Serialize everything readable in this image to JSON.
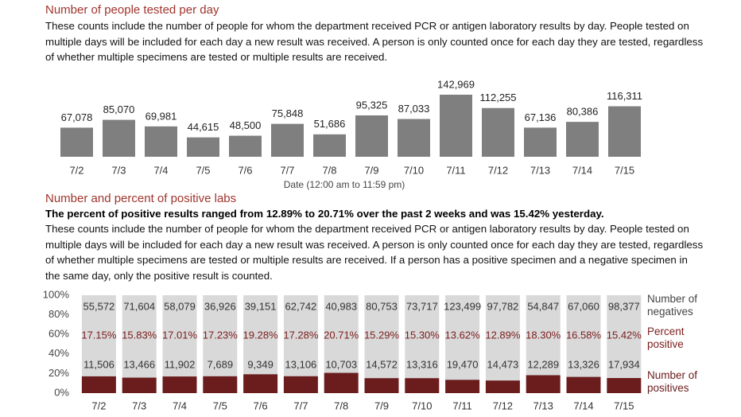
{
  "chart_data": [
    {
      "type": "bar",
      "title": "Number of people tested per day",
      "subtitle": "These counts include the number of people for whom the department received PCR or antigen laboratory results by day. People tested on multiple days will be included for each day a new result was received. A person is only counted once for each day they are tested, regardless of whether multiple specimens are tested or multiple results are received.",
      "x_label": "Date (12:00 am to 11:59 pm)",
      "categories": [
        "7/2",
        "7/3",
        "7/4",
        "7/5",
        "7/6",
        "7/7",
        "7/8",
        "7/9",
        "7/10",
        "7/11",
        "7/12",
        "7/13",
        "7/14",
        "7/15"
      ],
      "values": [
        67078,
        85070,
        69981,
        44615,
        48500,
        75848,
        51686,
        95325,
        87033,
        142969,
        112255,
        67136,
        80386,
        116311
      ],
      "value_labels": [
        "67,078",
        "85,070",
        "69,981",
        "44,615",
        "48,500",
        "75,848",
        "51,686",
        "95,325",
        "87,033",
        "142,969",
        "112,255",
        "67,136",
        "80,386",
        "116,311"
      ],
      "color": "#7f7f7f"
    },
    {
      "type": "stacked_percent_bar",
      "title": "Number and percent of positive labs",
      "highlight": "The percent of positive results ranged from 12.89% to 20.71% over the past 2 weeks and was 15.42% yesterday.",
      "subtitle": "These counts include the number of people for whom the department received PCR or antigen laboratory results by day. People tested on multiple days will be included for each day a new result was received. A person is only counted once for each day they are tested, regardless of whether multiple specimens are tested or multiple results are received. If a person has a positive specimen and a negative specimen in the same day, only the positive result is counted.",
      "categories": [
        "7/2",
        "7/3",
        "7/4",
        "7/5",
        "7/6",
        "7/7",
        "7/8",
        "7/9",
        "7/10",
        "7/11",
        "7/12",
        "7/13",
        "7/14",
        "7/15"
      ],
      "ylim": [
        0,
        100
      ],
      "yticks": [
        {
          "value": 0,
          "label": "0%"
        },
        {
          "value": 20,
          "label": "20%"
        },
        {
          "value": 40,
          "label": "40%"
        },
        {
          "value": 60,
          "label": "60%"
        },
        {
          "value": 80,
          "label": "80%"
        },
        {
          "value": 100,
          "label": "100%"
        }
      ],
      "series": [
        {
          "name": "Number of negatives",
          "color": "#d9d9d9",
          "values": [
            55572,
            71604,
            58079,
            36926,
            39151,
            62742,
            40983,
            80753,
            73717,
            123499,
            97782,
            54847,
            67060,
            98377
          ],
          "value_labels": [
            "55,572",
            "71,604",
            "58,079",
            "36,926",
            "39,151",
            "62,742",
            "40,983",
            "80,753",
            "73,717",
            "123,499",
            "97,782",
            "54,847",
            "67,060",
            "98,377"
          ]
        },
        {
          "name": "Percent positive",
          "color": "#7b1c1c",
          "values": [
            17.15,
            15.83,
            17.01,
            17.23,
            19.28,
            17.28,
            20.71,
            15.29,
            15.3,
            13.62,
            12.89,
            18.3,
            16.58,
            15.42
          ],
          "value_labels": [
            "17.15%",
            "15.83%",
            "17.01%",
            "17.23%",
            "19.28%",
            "17.28%",
            "20.71%",
            "15.29%",
            "15.30%",
            "13.62%",
            "12.89%",
            "18.30%",
            "16.58%",
            "15.42%"
          ]
        },
        {
          "name": "Number of positives",
          "color": "#6b1d1d",
          "values": [
            11506,
            13466,
            11902,
            7689,
            9349,
            13106,
            10703,
            14572,
            13316,
            19470,
            14473,
            12289,
            13326,
            17934
          ],
          "value_labels": [
            "11,506",
            "13,466",
            "11,902",
            "7,689",
            "9,349",
            "13,106",
            "10,703",
            "14,572",
            "13,316",
            "19,470",
            "14,473",
            "12,289",
            "13,326",
            "17,934"
          ]
        }
      ]
    }
  ]
}
